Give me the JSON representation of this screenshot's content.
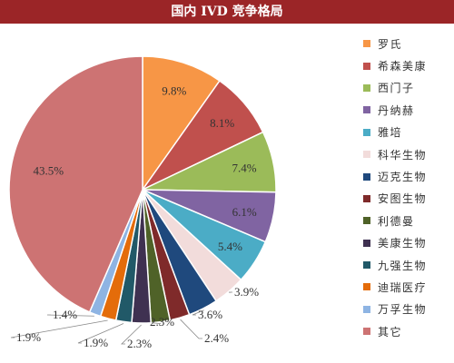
{
  "header": {
    "title": "国内 IVD 竞争格局"
  },
  "chart_data": {
    "type": "pie",
    "title": "国内 IVD 竞争格局",
    "legend_position": "right",
    "start": "top",
    "direction": "clockwise",
    "slices": [
      {
        "name": "罗氏",
        "value": 9.8,
        "label": "9.8%",
        "color": "#f79646"
      },
      {
        "name": "希森美康",
        "value": 8.1,
        "label": "8.1%",
        "color": "#c0504d"
      },
      {
        "name": "西门子",
        "value": 7.4,
        "label": "7.4%",
        "color": "#9bbb59"
      },
      {
        "name": "丹纳赫",
        "value": 6.1,
        "label": "6.1%",
        "color": "#8064a2"
      },
      {
        "name": "雅培",
        "value": 5.4,
        "label": "5.4%",
        "color": "#4bacc6"
      },
      {
        "name": "科华生物",
        "value": 3.9,
        "label": "3.9%",
        "color": "#f2dcdb"
      },
      {
        "name": "迈克生物",
        "value": 3.6,
        "label": "3.6%",
        "color": "#1f497d"
      },
      {
        "name": "安图生物",
        "value": 2.4,
        "label": "2.4%",
        "color": "#7f2a2a"
      },
      {
        "name": "利德曼",
        "value": 2.3,
        "label": "2.3%",
        "color": "#4f6228"
      },
      {
        "name": "美康生物",
        "value": 2.3,
        "label": "2.3%",
        "color": "#3f3151"
      },
      {
        "name": "九强生物",
        "value": 1.9,
        "label": "1.9%",
        "color": "#215968"
      },
      {
        "name": "迪瑞医疗",
        "value": 1.9,
        "label": "1.9%",
        "color": "#e46c0a"
      },
      {
        "name": "万孚生物",
        "value": 1.4,
        "label": "1.4%",
        "color": "#8eb4e3"
      },
      {
        "name": "其它",
        "value": 43.5,
        "label": "43.5%",
        "color": "#cd7373"
      }
    ]
  }
}
